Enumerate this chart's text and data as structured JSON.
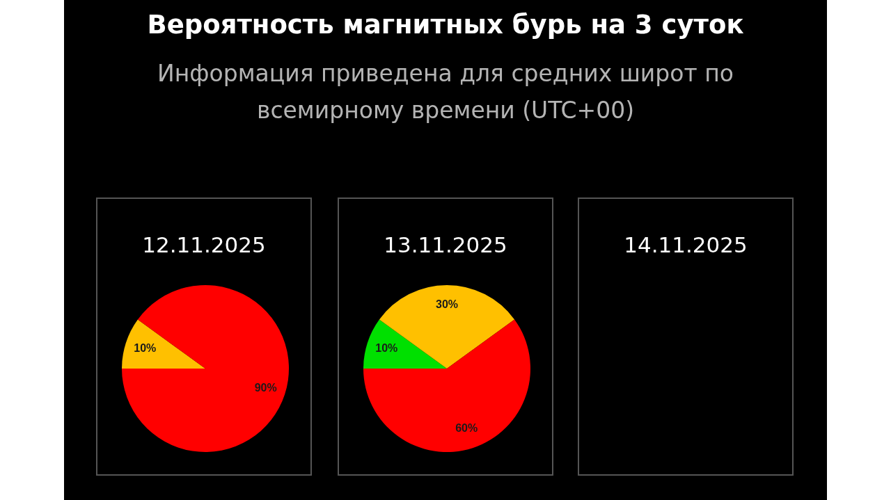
{
  "chart_data": [
    {
      "type": "other",
      "title": "Вероятность магнитных бурь на 3 суток",
      "subtitle": "Информация приведена для средних широт по всемирному времени (UTC+00)"
    },
    {
      "type": "pie",
      "title": "12.11.2025",
      "categories": [
        null,
        null
      ],
      "values": [
        10,
        90
      ],
      "colors": [
        "#ffc000",
        "#ff0000"
      ],
      "value_labels": [
        "10%",
        "90%"
      ]
    },
    {
      "type": "pie",
      "title": "13.11.2025",
      "categories": [
        null,
        null,
        null
      ],
      "values": [
        10,
        30,
        60
      ],
      "colors": [
        "#00e000",
        "#ffc000",
        "#ff0000"
      ],
      "value_labels": [
        "10%",
        "30%",
        "60%"
      ]
    },
    {
      "type": "other",
      "title": "14.11.2025"
    }
  ]
}
